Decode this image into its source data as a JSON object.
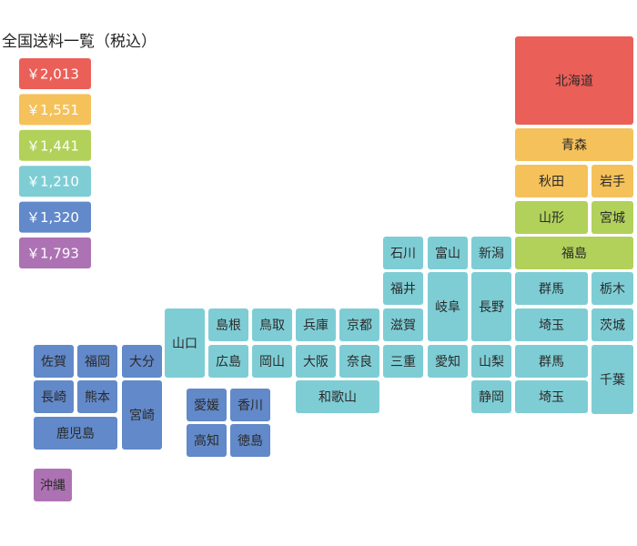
{
  "title": "全国送料一覧（税込）",
  "legend": [
    {
      "label": "￥2,013",
      "color": "#ea5f57"
    },
    {
      "label": "￥1,551",
      "color": "#f5c15a"
    },
    {
      "label": "￥1,441",
      "color": "#b1d15a"
    },
    {
      "label": "￥1,210",
      "color": "#7ecdd5"
    },
    {
      "label": "￥1,320",
      "color": "#6289c9"
    },
    {
      "label": "￥1,793",
      "color": "#ad72b3"
    }
  ],
  "tiles": [
    {
      "label": "北海道",
      "color": "#ea5f57"
    },
    {
      "label": "青森",
      "color": "#f5c15a"
    },
    {
      "label": "秋田",
      "color": "#f5c15a"
    },
    {
      "label": "岩手",
      "color": "#f5c15a"
    },
    {
      "label": "山形",
      "color": "#b1d15a"
    },
    {
      "label": "宮城",
      "color": "#b1d15a"
    },
    {
      "label": "福島",
      "color": "#b1d15a"
    },
    {
      "label": "新潟",
      "color": "#7ecdd5"
    },
    {
      "label": "富山",
      "color": "#7ecdd5"
    },
    {
      "label": "石川",
      "color": "#7ecdd5"
    },
    {
      "label": "福井",
      "color": "#7ecdd5"
    },
    {
      "label": "岐阜",
      "color": "#7ecdd5"
    },
    {
      "label": "長野",
      "color": "#7ecdd5"
    },
    {
      "label": "群馬",
      "color": "#7ecdd5"
    },
    {
      "label": "栃木",
      "color": "#7ecdd5"
    },
    {
      "label": "埼玉",
      "color": "#7ecdd5"
    },
    {
      "label": "茨城",
      "color": "#7ecdd5"
    },
    {
      "label": "群馬",
      "color": "#7ecdd5"
    },
    {
      "label": "千葉",
      "color": "#7ecdd5"
    },
    {
      "label": "埼玉",
      "color": "#7ecdd5"
    },
    {
      "label": "滋賀",
      "color": "#7ecdd5"
    },
    {
      "label": "三重",
      "color": "#7ecdd5"
    },
    {
      "label": "愛知",
      "color": "#7ecdd5"
    },
    {
      "label": "山梨",
      "color": "#7ecdd5"
    },
    {
      "label": "静岡",
      "color": "#7ecdd5"
    },
    {
      "label": "京都",
      "color": "#7ecdd5"
    },
    {
      "label": "兵庫",
      "color": "#7ecdd5"
    },
    {
      "label": "大阪",
      "color": "#7ecdd5"
    },
    {
      "label": "奈良",
      "color": "#7ecdd5"
    },
    {
      "label": "和歌山",
      "color": "#7ecdd5"
    },
    {
      "label": "鳥取",
      "color": "#7ecdd5"
    },
    {
      "label": "島根",
      "color": "#7ecdd5"
    },
    {
      "label": "広島",
      "color": "#7ecdd5"
    },
    {
      "label": "岡山",
      "color": "#7ecdd5"
    },
    {
      "label": "山口",
      "color": "#7ecdd5"
    },
    {
      "label": "愛媛",
      "color": "#6289c9"
    },
    {
      "label": "香川",
      "color": "#6289c9"
    },
    {
      "label": "高知",
      "color": "#6289c9"
    },
    {
      "label": "徳島",
      "color": "#6289c9"
    },
    {
      "label": "佐賀",
      "color": "#6289c9"
    },
    {
      "label": "福岡",
      "color": "#6289c9"
    },
    {
      "label": "大分",
      "color": "#6289c9"
    },
    {
      "label": "長崎",
      "color": "#6289c9"
    },
    {
      "label": "熊本",
      "color": "#6289c9"
    },
    {
      "label": "宮崎",
      "color": "#6289c9"
    },
    {
      "label": "鹿児島",
      "color": "#6289c9"
    },
    {
      "label": "沖縄",
      "color": "#ad72b3"
    }
  ]
}
